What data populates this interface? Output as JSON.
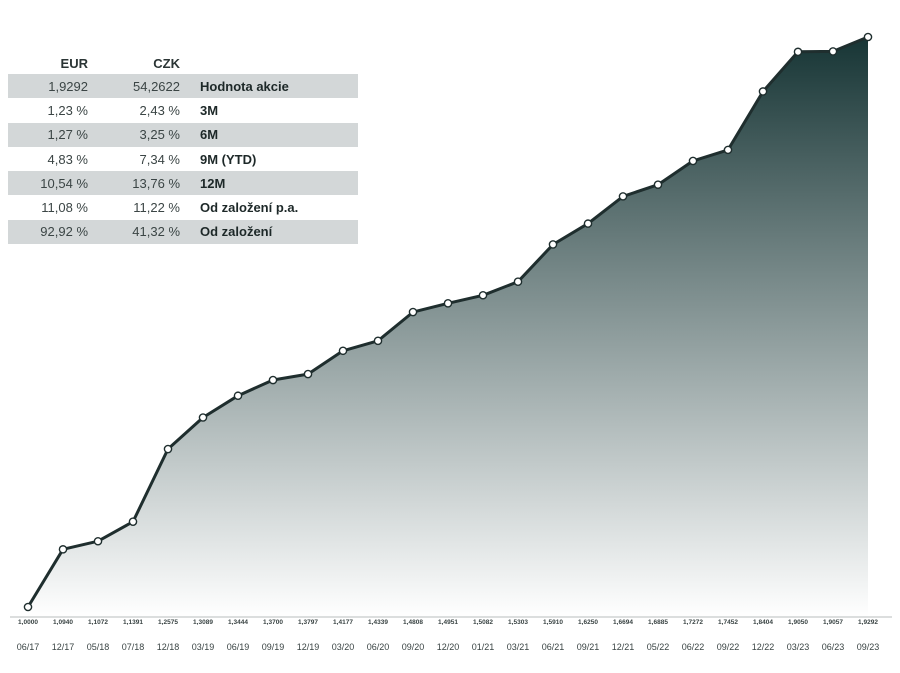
{
  "table": {
    "headers": {
      "eur": "EUR",
      "czk": "CZK"
    },
    "rows": [
      {
        "eur": "1,9292",
        "czk": "54,2622",
        "label": "Hodnota akcie"
      },
      {
        "eur": "1,23 %",
        "czk": "2,43 %",
        "label": "3M"
      },
      {
        "eur": "1,27 %",
        "czk": "3,25 %",
        "label": "6M"
      },
      {
        "eur": "4,83 %",
        "czk": "7,34 %",
        "label": "9M (YTD)"
      },
      {
        "eur": "10,54 %",
        "czk": "13,76 %",
        "label": "12M"
      },
      {
        "eur": "11,08 %",
        "czk": "11,22 %",
        "label": "Od založení p.a."
      },
      {
        "eur": "92,92 %",
        "czk": "41,32 %",
        "label": "Od založení"
      }
    ]
  },
  "colors": {
    "line": "#1f2e2e",
    "fill_top": "#173535",
    "fill_bottom": "#ffffff",
    "row_shade": "#d3d7d8"
  },
  "chart_data": {
    "type": "area",
    "title": "",
    "xlabel": "",
    "ylabel": "",
    "x": [
      "06/17",
      "12/17",
      "05/18",
      "07/18",
      "12/18",
      "03/19",
      "06/19",
      "09/19",
      "12/19",
      "03/20",
      "06/20",
      "09/20",
      "12/20",
      "01/21",
      "03/21",
      "06/21",
      "09/21",
      "12/21",
      "05/22",
      "06/22",
      "09/22",
      "12/22",
      "03/23",
      "06/23",
      "09/23"
    ],
    "value_labels": [
      "1,0000",
      "1,0940",
      "1,1072",
      "1,1391",
      "1,2575",
      "1,3089",
      "1,3444",
      "1,3700",
      "1,3797",
      "1,4177",
      "1,4339",
      "1,4808",
      "1,4951",
      "1,5082",
      "1,5303",
      "1,5910",
      "1,6250",
      "1,6694",
      "1,6885",
      "1,7272",
      "1,7452",
      "1,8404",
      "1,9050",
      "1,9057",
      "1,9292"
    ],
    "values": [
      1.0,
      1.094,
      1.1072,
      1.1391,
      1.2575,
      1.3089,
      1.3444,
      1.37,
      1.3797,
      1.4177,
      1.4339,
      1.4808,
      1.4951,
      1.5082,
      1.5303,
      1.591,
      1.625,
      1.6694,
      1.6885,
      1.7272,
      1.7452,
      1.8404,
      1.905,
      1.9057,
      1.9292
    ],
    "ylim": [
      1.0,
      1.9292
    ],
    "grid": false,
    "legend": "none"
  }
}
